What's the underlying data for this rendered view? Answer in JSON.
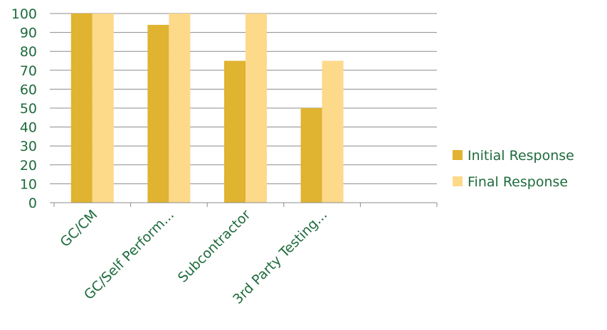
{
  "chart_data": {
    "type": "bar",
    "categories": [
      "GC/CM",
      "GC/Self Perform...",
      "Subcontractor",
      "3rd Party Testing...",
      ""
    ],
    "series": [
      {
        "name": "Initial Response",
        "values": [
          100,
          94,
          75,
          50,
          null
        ],
        "color": "#e0b330"
      },
      {
        "name": "Final Response",
        "values": [
          100,
          100,
          100,
          75,
          null
        ],
        "color": "#fdd98a"
      }
    ],
    "y_ticks": [
      "0",
      "10",
      "20",
      "30",
      "40",
      "50",
      "60",
      "70",
      "80",
      "90",
      "100"
    ],
    "ylim": [
      0,
      100
    ],
    "grid": true,
    "legend_position": "right",
    "text_color": "#1e6b3c",
    "gridline_color": "#8c8c8c"
  }
}
